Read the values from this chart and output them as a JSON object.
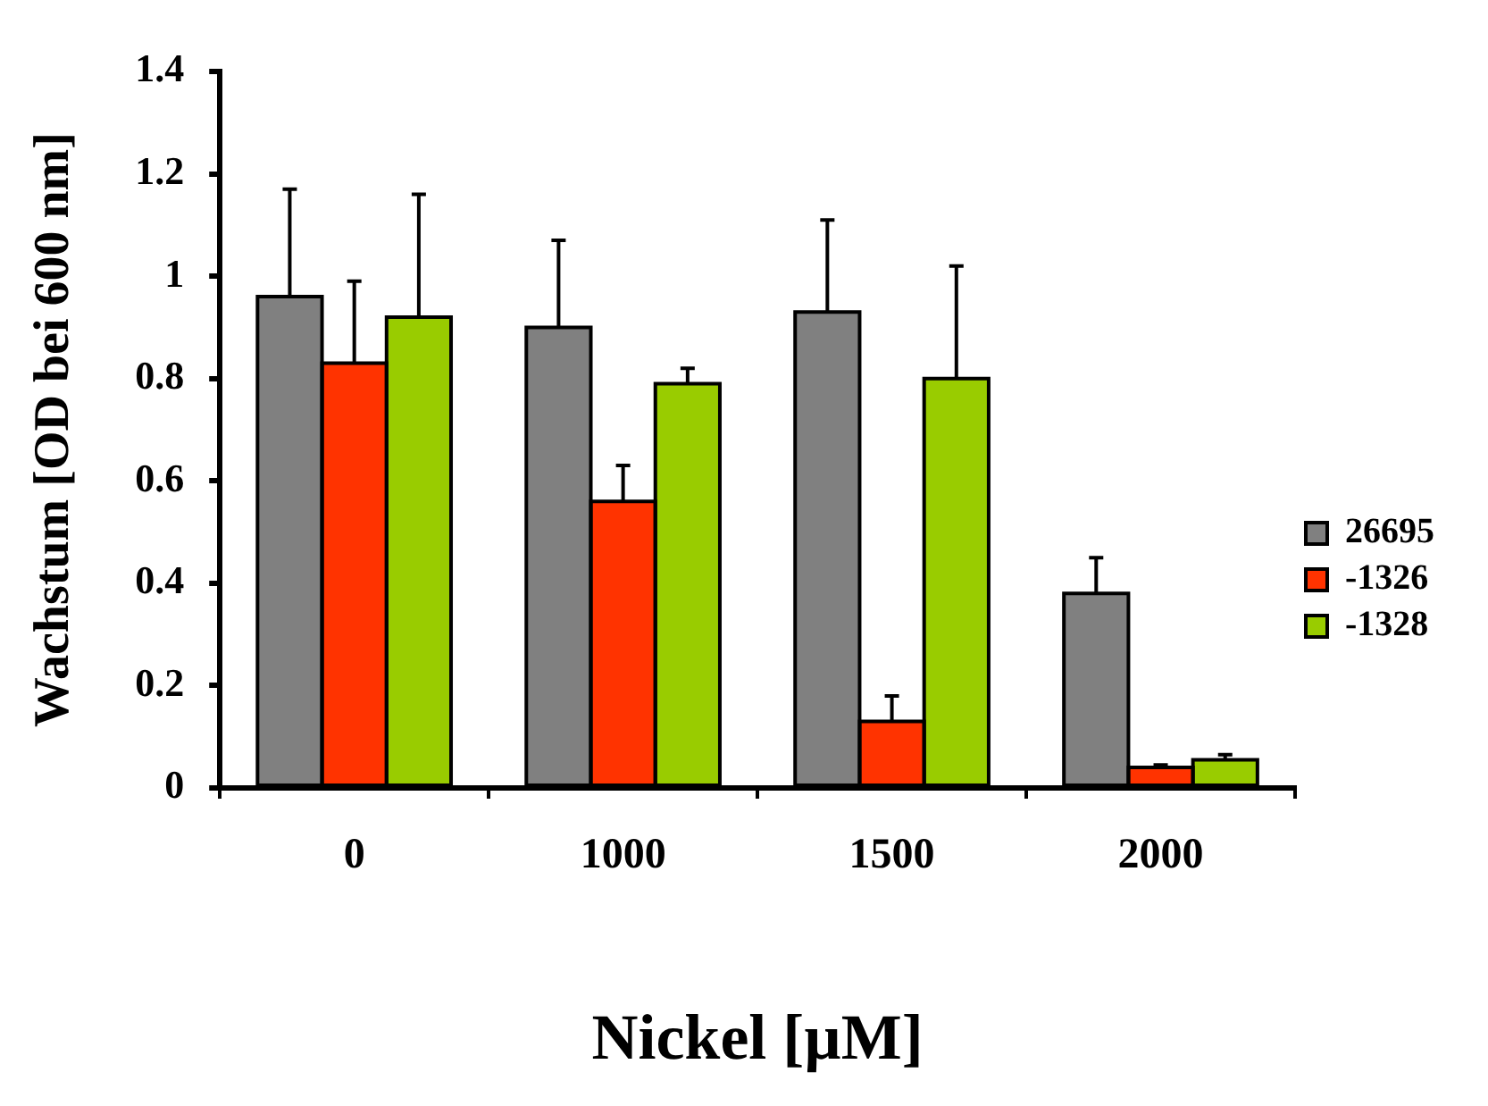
{
  "chart_data": {
    "type": "bar",
    "xlabel": "Nickel [µM]",
    "ylabel": "Wachstum [OD bei 600 nm]",
    "categories": [
      "0",
      "1000",
      "1500",
      "2000"
    ],
    "ylim": [
      0,
      1.4
    ],
    "yticks": [
      0,
      0.2,
      0.4,
      0.6,
      0.8,
      1,
      1.2,
      1.4
    ],
    "grid": false,
    "legend": "right",
    "series": [
      {
        "name": "26695",
        "color": "#808080",
        "values": [
          0.96,
          0.9,
          0.93,
          0.38
        ],
        "errors": [
          [
            0.96,
            1.17
          ],
          [
            0.9,
            1.07
          ],
          [
            0.93,
            1.11
          ],
          [
            0.38,
            0.45
          ]
        ]
      },
      {
        "name": "-1326",
        "color": "#ff3300",
        "values": [
          0.83,
          0.56,
          0.13,
          0.04
        ],
        "errors": [
          [
            0.83,
            0.99
          ],
          [
            0.56,
            0.63
          ],
          [
            0.13,
            0.18
          ],
          [
            0.04,
            0.045
          ]
        ]
      },
      {
        "name": "-1328",
        "color": "#99cc00",
        "values": [
          0.92,
          0.79,
          0.8,
          0.055
        ],
        "errors": [
          [
            0.92,
            1.16
          ],
          [
            0.79,
            0.82
          ],
          [
            0.8,
            1.02
          ],
          [
            0.055,
            0.065
          ]
        ]
      }
    ]
  }
}
